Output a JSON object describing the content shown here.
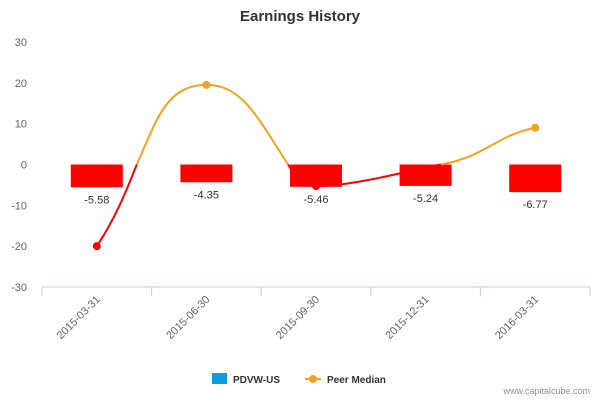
{
  "chart_data": {
    "type": "bar",
    "title": "Earnings History",
    "xlabel": "",
    "ylabel": "",
    "ylim": [
      -30,
      30
    ],
    "yticks": [
      30,
      20,
      10,
      0,
      -10,
      -20,
      -30
    ],
    "categories": [
      "2015-03-31",
      "2015-06-30",
      "2015-09-30",
      "2015-12-31",
      "2016-03-31"
    ],
    "series": [
      {
        "name": "PDVW-US",
        "type": "bar",
        "values": [
          -5.58,
          -4.35,
          -5.46,
          -5.24,
          -6.77
        ],
        "value_labels": [
          "-5.58",
          "-4.35",
          "-5.46",
          "-5.24",
          "-6.77"
        ],
        "bar_color": "#ff0000",
        "legend_color": "#0b9de3"
      },
      {
        "name": "Peer Median",
        "type": "line",
        "values": [
          -20,
          19.5,
          -5.3,
          null,
          9
        ],
        "color": "#f5a21c",
        "negative_color": "#ff0000"
      }
    ],
    "legend_position": "bottom-center",
    "grid": false
  },
  "credit": "www.capitalcube.com"
}
